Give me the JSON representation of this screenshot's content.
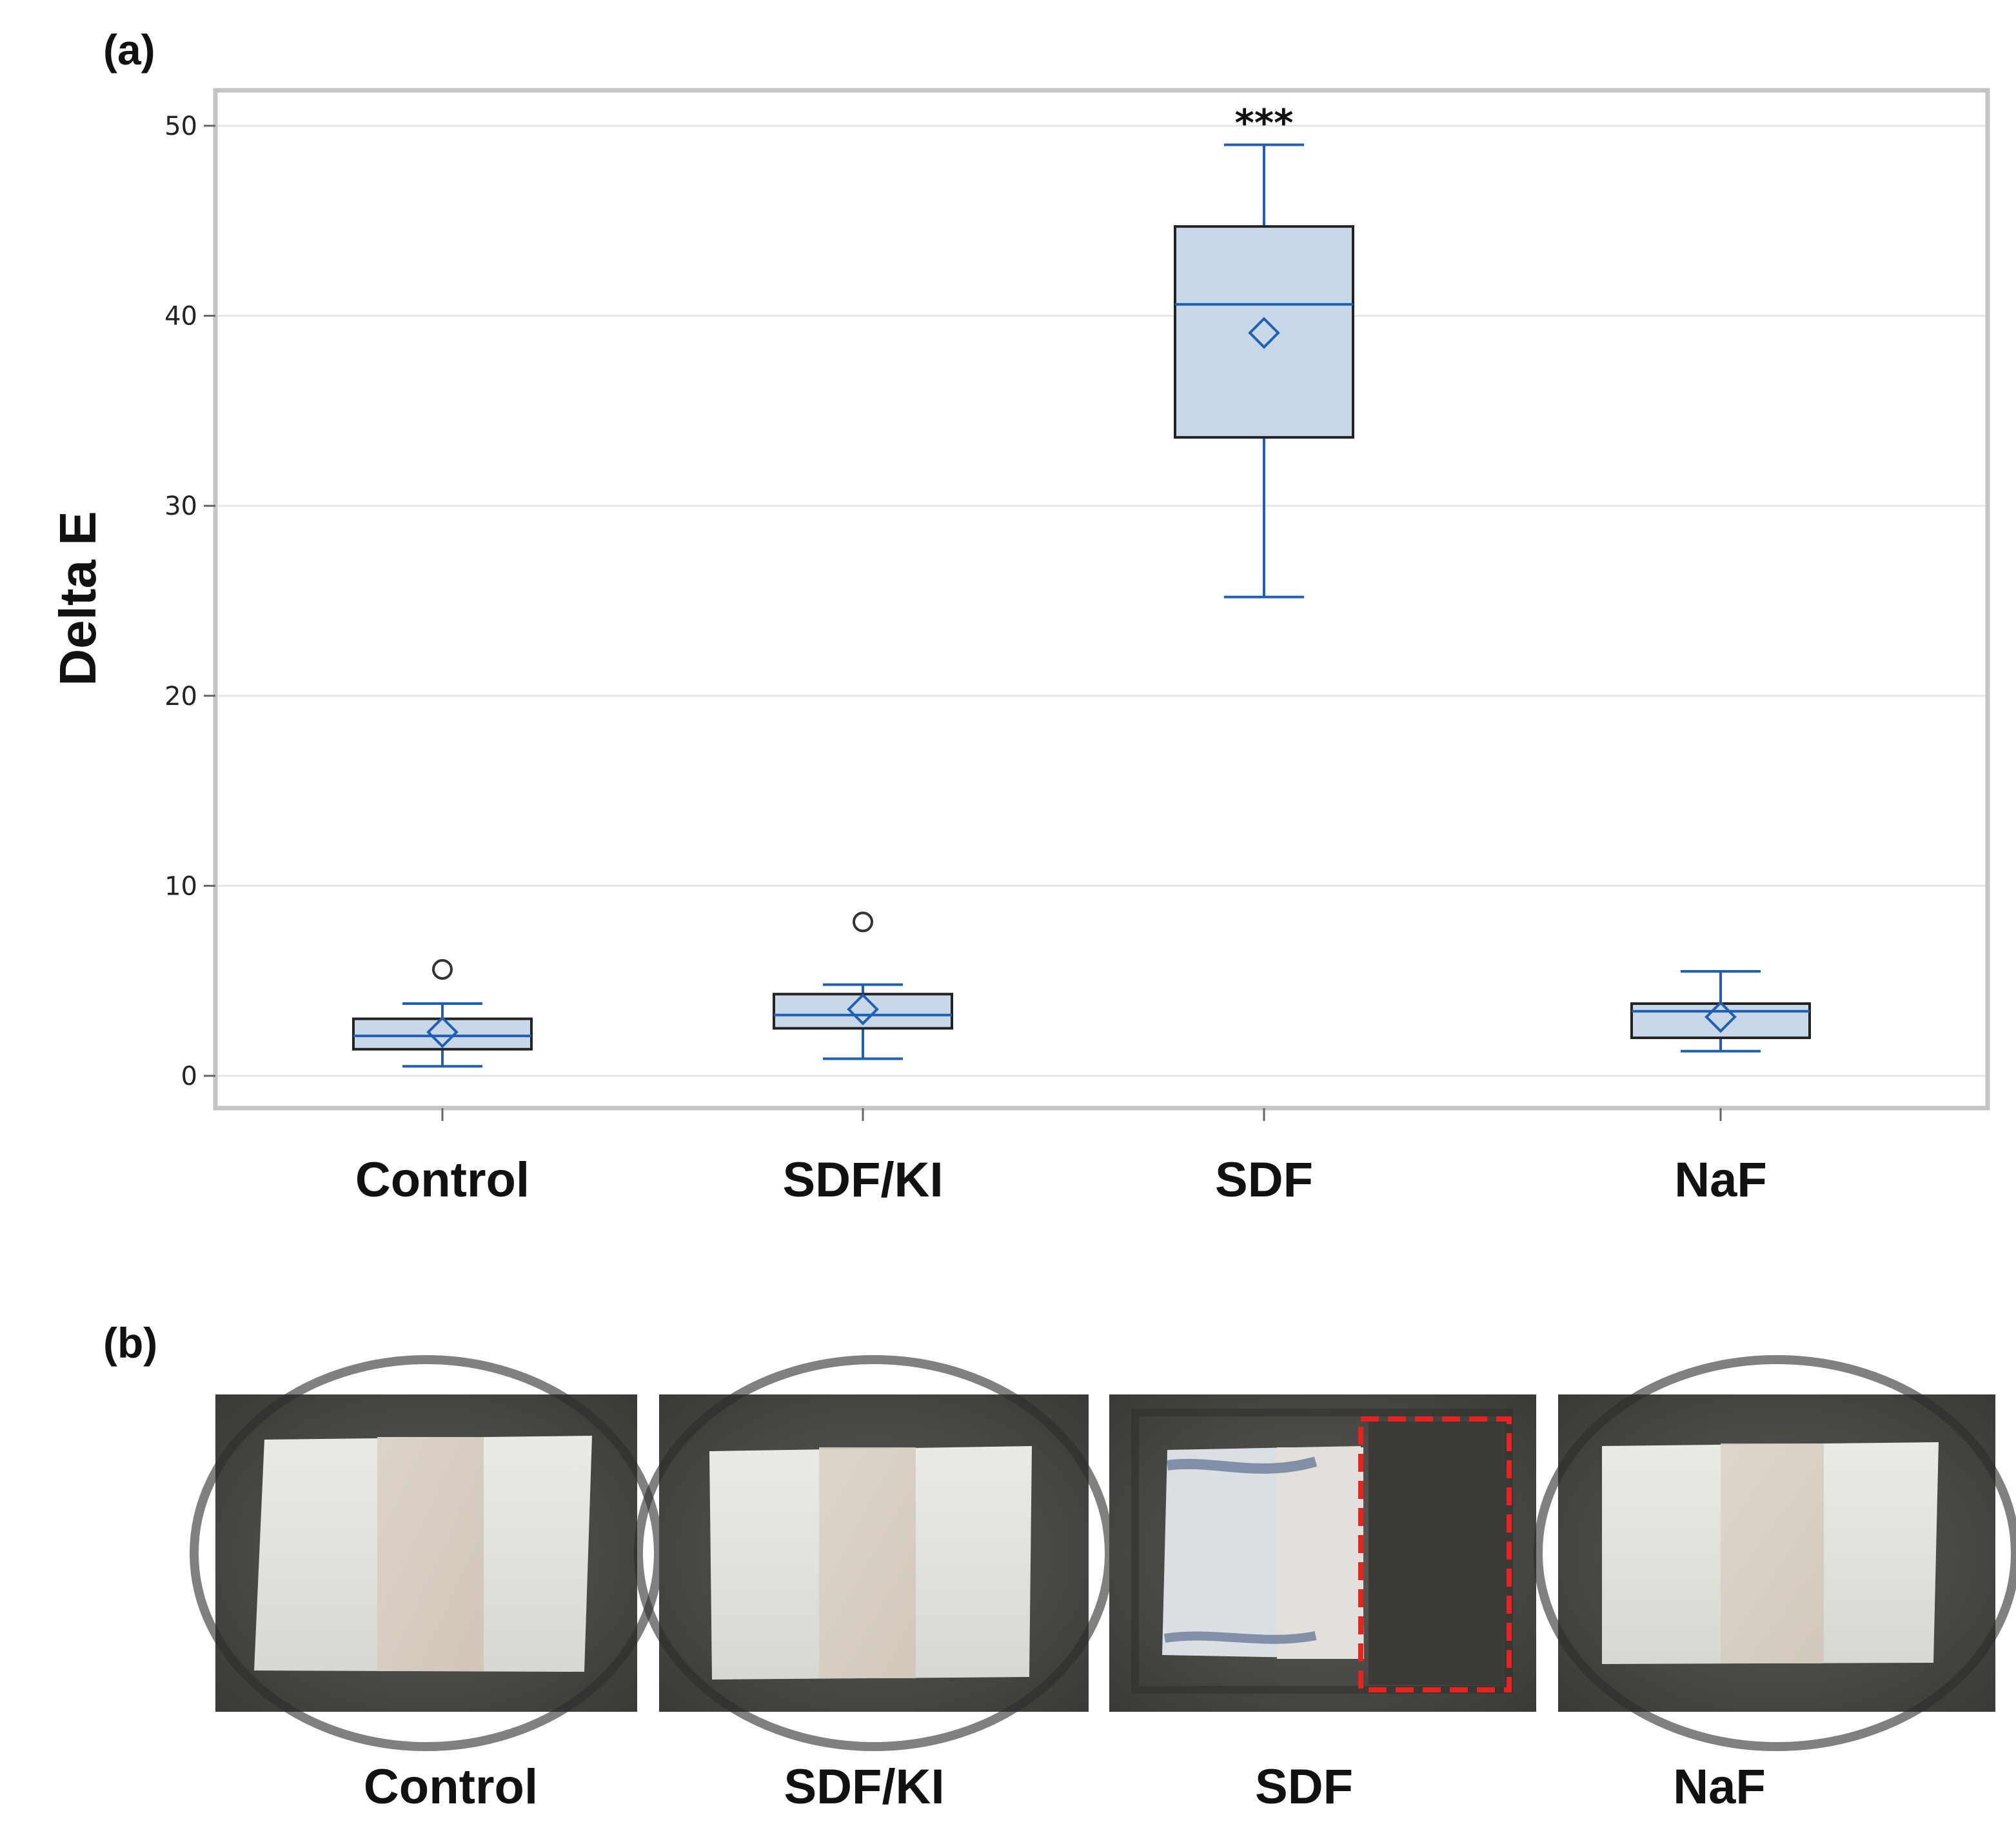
{
  "panels": {
    "a_label": "(a)",
    "b_label": "(b)"
  },
  "chart_data": {
    "type": "box",
    "title": "",
    "xlabel": "",
    "ylabel": "Delta E",
    "ylim": [
      -1.8,
      52
    ],
    "yticks": [
      0,
      10,
      20,
      30,
      40,
      50
    ],
    "grid": true,
    "categories": [
      "Control",
      "SDF/KI",
      "SDF",
      "NaF"
    ],
    "boxes": [
      {
        "name": "Control",
        "whisker_low": 0.5,
        "q1": 1.4,
        "median": 2.1,
        "q3": 3.0,
        "whisker_high": 3.8,
        "mean": 2.3,
        "outliers": [
          5.6
        ],
        "significance": ""
      },
      {
        "name": "SDF/KI",
        "whisker_low": 0.9,
        "q1": 2.5,
        "median": 3.2,
        "q3": 4.3,
        "whisker_high": 4.8,
        "mean": 3.5,
        "outliers": [
          8.1
        ],
        "significance": ""
      },
      {
        "name": "SDF",
        "whisker_low": 25.2,
        "q1": 33.6,
        "median": 40.6,
        "q3": 44.7,
        "whisker_high": 49.0,
        "mean": 39.1,
        "outliers": [],
        "significance": "***"
      },
      {
        "name": "NaF",
        "whisker_low": 1.3,
        "q1": 2.0,
        "median": 3.4,
        "q3": 3.8,
        "whisker_high": 5.5,
        "mean": 3.1,
        "outliers": [],
        "significance": ""
      }
    ],
    "colors": {
      "box_fill": "#c9d8e8",
      "box_edge": "#222222",
      "whisker": "#1f5fb4",
      "median": "#1f5fb4",
      "mean_marker": "#1f5fb4",
      "outlier": "#333333",
      "grid": "#e6e6e6",
      "frame": "#c4c4c4"
    }
  },
  "photos": {
    "labels": [
      "Control",
      "SDF/KI",
      "SDF",
      "NaF"
    ],
    "highlight_color": "#e8231f"
  }
}
